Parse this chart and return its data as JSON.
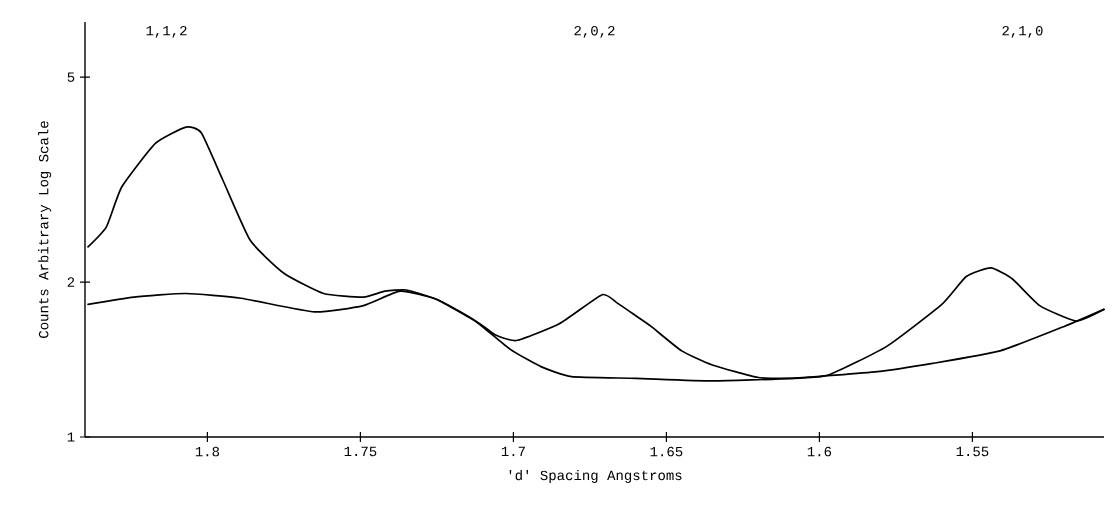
{
  "chart_data": {
    "type": "line",
    "xlabel": "'d' Spacing Angstroms",
    "ylabel": "Counts Arbitrary Log Scale",
    "log": "y",
    "xlim": [
      1.84,
      1.507
    ],
    "ylim": [
      1,
      6.4
    ],
    "xticks": [
      1.8,
      1.75,
      1.7,
      1.65,
      1.6,
      1.55
    ],
    "yticks": [
      1,
      2,
      5
    ],
    "annotations": [
      "1,1,2",
      "2,0,2",
      "2,1,0"
    ],
    "series": [
      {
        "color": "#000000",
        "x": [
          1.839,
          1.833,
          1.828,
          1.817,
          1.807,
          1.802,
          1.795,
          1.786,
          1.775,
          1.762,
          1.749,
          1.742,
          1.735,
          1.725,
          1.711,
          1.706,
          1.699,
          1.685,
          1.671,
          1.666,
          1.66,
          1.655,
          1.645,
          1.635,
          1.62,
          1.609,
          1.597,
          1.578,
          1.56,
          1.552,
          1.544,
          1.537,
          1.528,
          1.516,
          1.507
        ],
        "values": [
          2.34,
          2.56,
          3.06,
          3.72,
          4.0,
          3.9,
          3.16,
          2.41,
          2.08,
          1.9,
          1.87,
          1.92,
          1.93,
          1.85,
          1.66,
          1.58,
          1.54,
          1.66,
          1.89,
          1.82,
          1.72,
          1.64,
          1.47,
          1.38,
          1.305,
          1.3,
          1.32,
          1.5,
          1.81,
          2.05,
          2.13,
          2.03,
          1.8,
          1.68,
          1.77
        ]
      },
      {
        "color": "#000000",
        "x": [
          1.839,
          1.824,
          1.807,
          1.789,
          1.765,
          1.749,
          1.737,
          1.725,
          1.713,
          1.701,
          1.691,
          1.681,
          1.66,
          1.635,
          1.609,
          1.581,
          1.563,
          1.541,
          1.52,
          1.507
        ],
        "values": [
          1.81,
          1.87,
          1.9,
          1.86,
          1.75,
          1.8,
          1.92,
          1.85,
          1.69,
          1.48,
          1.37,
          1.31,
          1.3,
          1.285,
          1.3,
          1.34,
          1.39,
          1.47,
          1.64,
          1.77
        ]
      }
    ]
  }
}
